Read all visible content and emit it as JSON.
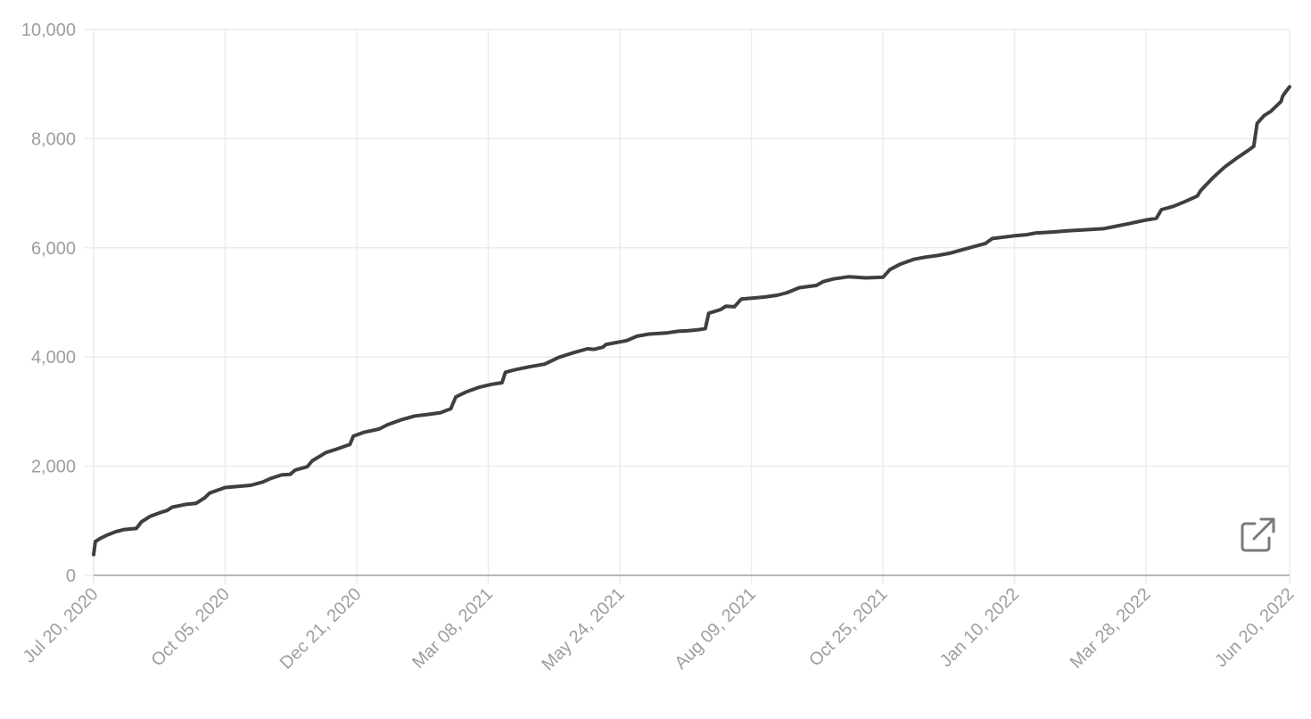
{
  "chart_data": {
    "type": "line",
    "title": "",
    "xlabel": "",
    "ylabel": "",
    "ylim": [
      0,
      10000
    ],
    "y_ticks": [
      0,
      2000,
      4000,
      6000,
      8000,
      10000
    ],
    "y_tick_labels": [
      "0",
      "2,000",
      "4,000",
      "6,000",
      "8,000",
      "10,000"
    ],
    "x_range": [
      "2020-07-20",
      "2022-06-20"
    ],
    "x_ticks": [
      "2020-07-20",
      "2020-10-05",
      "2020-12-21",
      "2021-03-08",
      "2021-05-24",
      "2021-08-09",
      "2021-10-25",
      "2022-01-10",
      "2022-03-28",
      "2022-06-20"
    ],
    "x_tick_labels": [
      "Jul 20, 2020",
      "Oct 05, 2020",
      "Dec 21, 2020",
      "Mar 08, 2021",
      "May 24, 2021",
      "Aug 09, 2021",
      "Oct 25, 2021",
      "Jan 10, 2022",
      "Mar 28, 2022",
      "Jun 20, 2022"
    ],
    "grid": true,
    "legend": "none",
    "series": [
      {
        "color": "#3f3f3f",
        "points": [
          [
            "2020-07-20",
            380
          ],
          [
            "2020-07-21",
            620
          ],
          [
            "2020-07-24",
            680
          ],
          [
            "2020-07-28",
            740
          ],
          [
            "2020-08-02",
            800
          ],
          [
            "2020-08-07",
            840
          ],
          [
            "2020-08-14",
            860
          ],
          [
            "2020-08-17",
            980
          ],
          [
            "2020-08-22",
            1080
          ],
          [
            "2020-08-28",
            1150
          ],
          [
            "2020-09-01",
            1190
          ],
          [
            "2020-09-04",
            1250
          ],
          [
            "2020-09-12",
            1300
          ],
          [
            "2020-09-18",
            1320
          ],
          [
            "2020-09-23",
            1420
          ],
          [
            "2020-09-26",
            1510
          ],
          [
            "2020-10-05",
            1610
          ],
          [
            "2020-10-20",
            1650
          ],
          [
            "2020-10-27",
            1710
          ],
          [
            "2020-11-01",
            1780
          ],
          [
            "2020-11-07",
            1840
          ],
          [
            "2020-11-12",
            1850
          ],
          [
            "2020-11-15",
            1930
          ],
          [
            "2020-11-22",
            1990
          ],
          [
            "2020-11-25",
            2100
          ],
          [
            "2020-12-03",
            2250
          ],
          [
            "2020-12-10",
            2320
          ],
          [
            "2020-12-17",
            2400
          ],
          [
            "2020-12-19",
            2550
          ],
          [
            "2020-12-25",
            2620
          ],
          [
            "2021-01-03",
            2680
          ],
          [
            "2021-01-08",
            2760
          ],
          [
            "2021-01-16",
            2850
          ],
          [
            "2021-01-24",
            2920
          ],
          [
            "2021-02-01",
            2950
          ],
          [
            "2021-02-08",
            2980
          ],
          [
            "2021-02-14",
            3050
          ],
          [
            "2021-02-17",
            3270
          ],
          [
            "2021-02-23",
            3360
          ],
          [
            "2021-03-03",
            3450
          ],
          [
            "2021-03-10",
            3500
          ],
          [
            "2021-03-16",
            3530
          ],
          [
            "2021-03-18",
            3720
          ],
          [
            "2021-03-24",
            3770
          ],
          [
            "2021-04-01",
            3820
          ],
          [
            "2021-04-10",
            3870
          ],
          [
            "2021-04-18",
            3990
          ],
          [
            "2021-04-27",
            4080
          ],
          [
            "2021-05-05",
            4150
          ],
          [
            "2021-05-09",
            4140
          ],
          [
            "2021-05-14",
            4180
          ],
          [
            "2021-05-16",
            4230
          ],
          [
            "2021-05-28",
            4300
          ],
          [
            "2021-06-03",
            4380
          ],
          [
            "2021-06-10",
            4420
          ],
          [
            "2021-06-20",
            4440
          ],
          [
            "2021-06-27",
            4470
          ],
          [
            "2021-07-03",
            4480
          ],
          [
            "2021-07-09",
            4500
          ],
          [
            "2021-07-13",
            4520
          ],
          [
            "2021-07-15",
            4800
          ],
          [
            "2021-07-22",
            4870
          ],
          [
            "2021-07-25",
            4930
          ],
          [
            "2021-07-30",
            4920
          ],
          [
            "2021-08-03",
            5060
          ],
          [
            "2021-08-10",
            5080
          ],
          [
            "2021-08-17",
            5100
          ],
          [
            "2021-08-24",
            5130
          ],
          [
            "2021-08-30",
            5180
          ],
          [
            "2021-09-06",
            5270
          ],
          [
            "2021-09-16",
            5310
          ],
          [
            "2021-09-20",
            5380
          ],
          [
            "2021-09-26",
            5430
          ],
          [
            "2021-10-05",
            5470
          ],
          [
            "2021-10-09",
            5460
          ],
          [
            "2021-10-15",
            5450
          ],
          [
            "2021-10-25",
            5460
          ],
          [
            "2021-10-29",
            5600
          ],
          [
            "2021-11-04",
            5700
          ],
          [
            "2021-11-12",
            5790
          ],
          [
            "2021-11-19",
            5830
          ],
          [
            "2021-11-26",
            5860
          ],
          [
            "2021-12-03",
            5900
          ],
          [
            "2021-12-10",
            5960
          ],
          [
            "2021-12-17",
            6020
          ],
          [
            "2021-12-24",
            6080
          ],
          [
            "2021-12-28",
            6170
          ],
          [
            "2022-01-10",
            6220
          ],
          [
            "2022-01-17",
            6240
          ],
          [
            "2022-01-22",
            6270
          ],
          [
            "2022-02-01",
            6290
          ],
          [
            "2022-02-10",
            6310
          ],
          [
            "2022-02-20",
            6330
          ],
          [
            "2022-03-03",
            6350
          ],
          [
            "2022-03-08",
            6380
          ],
          [
            "2022-03-19",
            6450
          ],
          [
            "2022-03-28",
            6510
          ],
          [
            "2022-04-03",
            6540
          ],
          [
            "2022-04-06",
            6700
          ],
          [
            "2022-04-13",
            6760
          ],
          [
            "2022-04-20",
            6850
          ],
          [
            "2022-04-27",
            6950
          ],
          [
            "2022-04-29",
            7050
          ],
          [
            "2022-05-06",
            7280
          ],
          [
            "2022-05-13",
            7480
          ],
          [
            "2022-05-20",
            7640
          ],
          [
            "2022-05-27",
            7790
          ],
          [
            "2022-05-30",
            7860
          ],
          [
            "2022-06-01",
            8280
          ],
          [
            "2022-06-05",
            8420
          ],
          [
            "2022-06-09",
            8500
          ],
          [
            "2022-06-12",
            8590
          ],
          [
            "2022-06-15",
            8680
          ],
          [
            "2022-06-16",
            8780
          ],
          [
            "2022-06-18",
            8870
          ],
          [
            "2022-06-20",
            8950
          ]
        ]
      }
    ]
  },
  "controls": {
    "open_icon": "external-link-icon"
  }
}
